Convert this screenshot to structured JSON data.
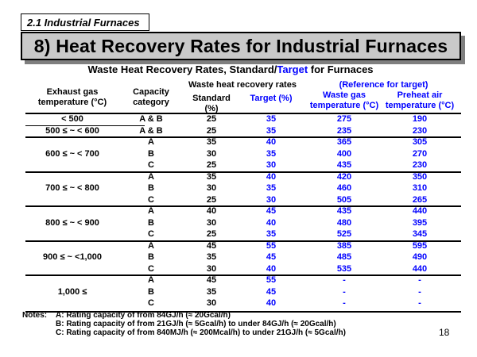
{
  "section": "2.1 Industrial Furnaces",
  "title": "8) Heat Recovery Rates for Industrial Furnaces",
  "subtitle": {
    "part1": "Waste Heat Recovery Rates, Standard/",
    "part2": "Target",
    "part3": " for Furnaces"
  },
  "headers": {
    "exhaust": "Exhaust gas temperature (°C)",
    "capacity": "Capacity category",
    "recovery": "Waste heat recovery rates",
    "standard": "Standard (%)",
    "target": "Target (%)",
    "reference": "(Reference for target)",
    "waste_gas": "Waste gas temperature (°C)",
    "preheat": "Preheat air temperature (°C)"
  },
  "groups": [
    {
      "label": "< 500",
      "rows": [
        {
          "cap": "A & B",
          "std": "25",
          "tgt": "35",
          "wg": "275",
          "pa": "190"
        }
      ]
    },
    {
      "label": "500 ≤ ~ < 600",
      "rows": [
        {
          "cap": "A & B",
          "std": "25",
          "tgt": "35",
          "wg": "235",
          "pa": "230"
        }
      ]
    },
    {
      "label": "600 ≤ ~ < 700",
      "rows": [
        {
          "cap": "A",
          "std": "35",
          "tgt": "40",
          "wg": "365",
          "pa": "305"
        },
        {
          "cap": "B",
          "std": "30",
          "tgt": "35",
          "wg": "400",
          "pa": "270"
        },
        {
          "cap": "C",
          "std": "25",
          "tgt": "30",
          "wg": "435",
          "pa": "230"
        }
      ]
    },
    {
      "label": "700 ≤ ~ < 800",
      "rows": [
        {
          "cap": "A",
          "std": "35",
          "tgt": "40",
          "wg": "420",
          "pa": "350"
        },
        {
          "cap": "B",
          "std": "30",
          "tgt": "35",
          "wg": "460",
          "pa": "310"
        },
        {
          "cap": "C",
          "std": "25",
          "tgt": "30",
          "wg": "505",
          "pa": "265"
        }
      ]
    },
    {
      "label": "800 ≤ ~ < 900",
      "rows": [
        {
          "cap": "A",
          "std": "40",
          "tgt": "45",
          "wg": "435",
          "pa": "440"
        },
        {
          "cap": "B",
          "std": "30",
          "tgt": "40",
          "wg": "480",
          "pa": "395"
        },
        {
          "cap": "C",
          "std": "25",
          "tgt": "35",
          "wg": "525",
          "pa": "345"
        }
      ]
    },
    {
      "label": "900 ≤ ~ <1,000",
      "rows": [
        {
          "cap": "A",
          "std": "45",
          "tgt": "55",
          "wg": "385",
          "pa": "595"
        },
        {
          "cap": "B",
          "std": "35",
          "tgt": "45",
          "wg": "485",
          "pa": "490"
        },
        {
          "cap": "C",
          "std": "30",
          "tgt": "40",
          "wg": "535",
          "pa": "440"
        }
      ]
    },
    {
      "label": "1,000 ≤",
      "rows": [
        {
          "cap": "A",
          "std": "45",
          "tgt": "55",
          "wg": "-",
          "pa": "-"
        },
        {
          "cap": "B",
          "std": "35",
          "tgt": "45",
          "wg": "-",
          "pa": "-"
        },
        {
          "cap": "C",
          "std": "30",
          "tgt": "40",
          "wg": "-",
          "pa": "-"
        }
      ]
    }
  ],
  "notes": {
    "label": "Notes:",
    "lines": [
      "A: Rating capacity of from 84GJ/h (≈ 20Gcal/h)",
      "B: Rating capacity of from 21GJ/h (≈ 5Gcal/h) to under 84GJ/h (≈ 20Gcal/h)",
      "C: Rating capacity of from 840MJ/h (≈ 200Mcal/h) to under 21GJ/h (≈ 5Gcal/h)"
    ]
  },
  "page_number": "18"
}
